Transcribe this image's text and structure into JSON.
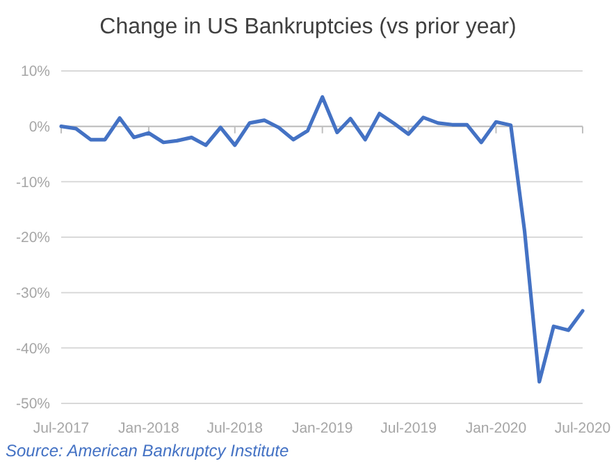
{
  "chart_data": {
    "type": "line",
    "title": "Change in US Bankruptcies (vs prior year)",
    "x": [
      "2017-07",
      "2017-08",
      "2017-09",
      "2017-10",
      "2017-11",
      "2017-12",
      "2018-01",
      "2018-02",
      "2018-03",
      "2018-04",
      "2018-05",
      "2018-06",
      "2018-07",
      "2018-08",
      "2018-09",
      "2018-10",
      "2018-11",
      "2018-12",
      "2019-01",
      "2019-02",
      "2019-03",
      "2019-04",
      "2019-05",
      "2019-06",
      "2019-07",
      "2019-08",
      "2019-09",
      "2019-10",
      "2019-11",
      "2019-12",
      "2020-01",
      "2020-02",
      "2020-03",
      "2020-04",
      "2020-05",
      "2020-06",
      "2020-07"
    ],
    "series": [
      {
        "color": "#4472c4",
        "values": [
          0,
          -0.4,
          -2.4,
          -2.4,
          1.5,
          -2.0,
          -1.2,
          -2.9,
          -2.6,
          -2.0,
          -3.4,
          -0.2,
          -3.4,
          0.6,
          1.1,
          -0.2,
          -2.4,
          -0.8,
          5.3,
          -1.1,
          1.4,
          -2.4,
          2.3,
          0.5,
          -1.4,
          1.6,
          0.6,
          0.3,
          0.3,
          -2.9,
          0.8,
          0.2,
          -18.9,
          -46.1,
          -36.1,
          -36.8,
          -33.3
        ]
      }
    ],
    "xlim": [
      "2017-07",
      "2020-07"
    ],
    "xticks": [
      {
        "value": "2017-07",
        "label": "Jul-2017"
      },
      {
        "value": "2018-01",
        "label": "Jan-2018"
      },
      {
        "value": "2018-07",
        "label": "Jul-2018"
      },
      {
        "value": "2019-01",
        "label": "Jan-2019"
      },
      {
        "value": "2019-07",
        "label": "Jul-2019"
      },
      {
        "value": "2020-01",
        "label": "Jan-2020"
      },
      {
        "value": "2020-07",
        "label": "Jul-2020"
      }
    ],
    "ylim": [
      -50,
      10
    ],
    "yticks": [
      {
        "value": 10,
        "label": "10%"
      },
      {
        "value": 0,
        "label": "0%"
      },
      {
        "value": -10,
        "label": "-10%"
      },
      {
        "value": -20,
        "label": "-20%"
      },
      {
        "value": -30,
        "label": "-30%"
      },
      {
        "value": -40,
        "label": "-40%"
      },
      {
        "value": -50,
        "label": "-50%"
      }
    ],
    "grid": "y",
    "marker": "none",
    "line_style": "solid",
    "annotations": [
      "Source: American Bankruptcy Institute"
    ]
  }
}
